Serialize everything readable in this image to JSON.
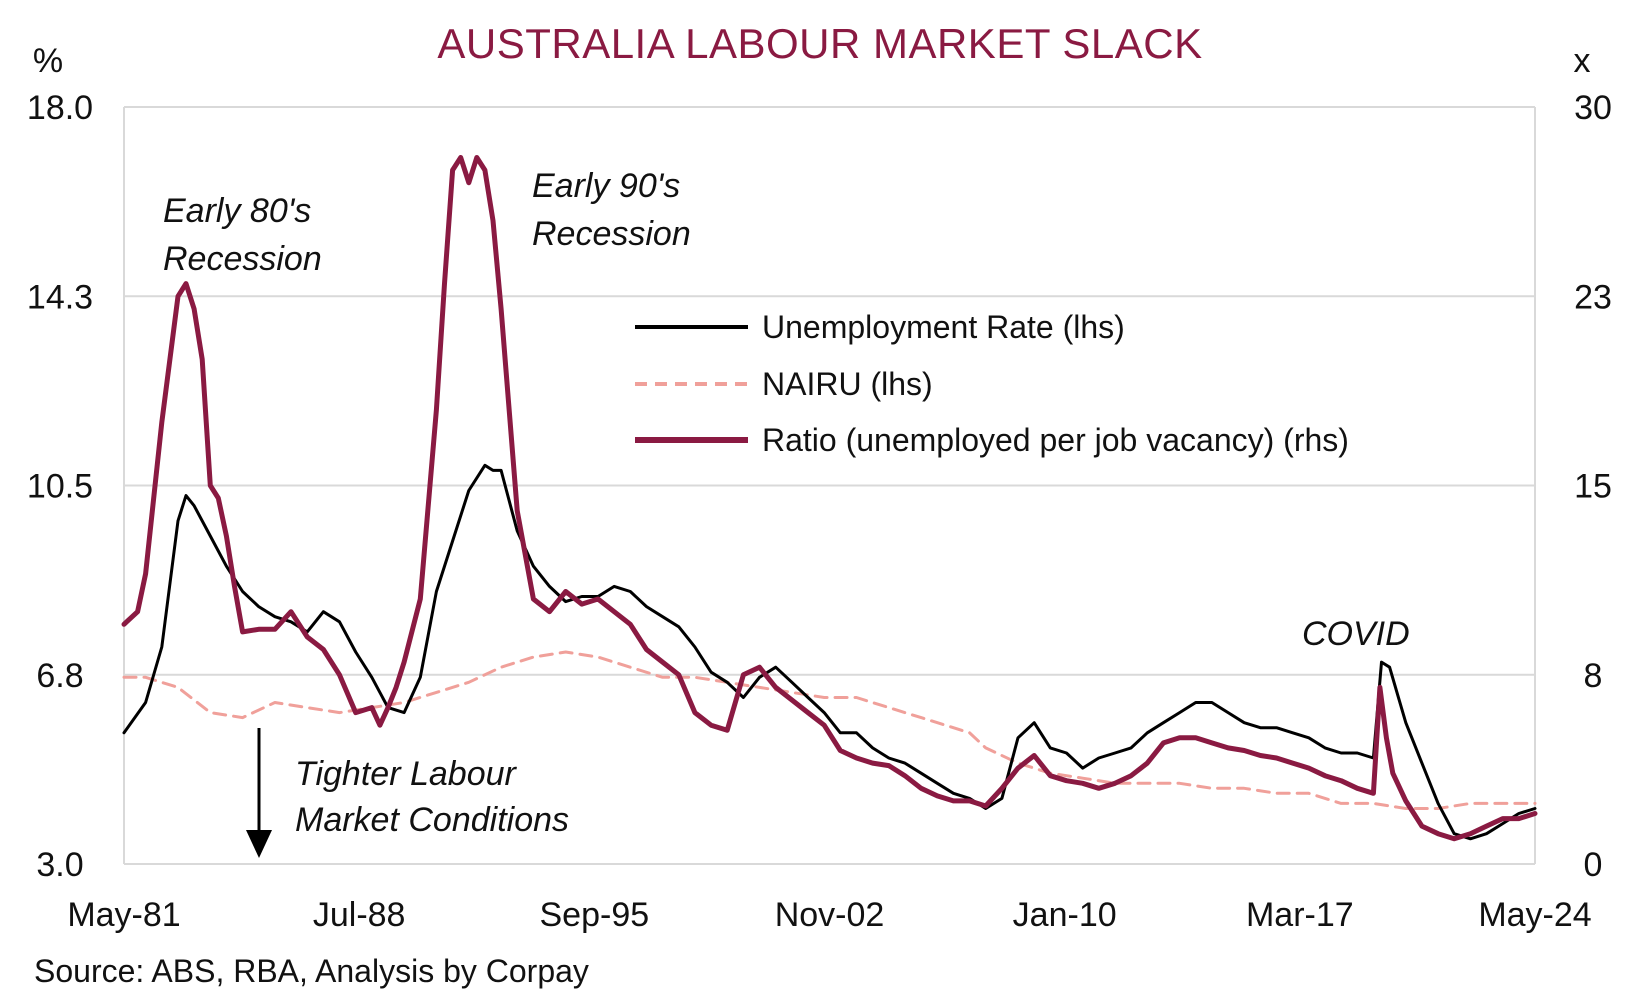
{
  "chart_data": {
    "type": "line",
    "title": "AUSTRALIA LABOUR MARKET SLACK",
    "y_left_unit": "%",
    "y_right_unit": "x",
    "y_left_ticks": [
      "18.0",
      "14.3",
      "10.5",
      "6.8",
      "3.0"
    ],
    "y_right_ticks": [
      "30",
      "23",
      "15",
      "8",
      "0"
    ],
    "ylim_left": [
      3.0,
      18.0
    ],
    "ylim_right": [
      0,
      30
    ],
    "x_ticks": [
      "May-81",
      "Jul-88",
      "Sep-95",
      "Nov-02",
      "Jan-10",
      "Mar-17",
      "May-24"
    ],
    "xlim": [
      1981.33,
      2025.0
    ],
    "grid": "horizontal",
    "legend_position": "center-right",
    "series": [
      {
        "name": "Unemployment Rate (lhs)",
        "axis": "left",
        "color": "#000000",
        "style": "solid",
        "x": [
          1981.33,
          1982.0,
          1982.5,
          1983.0,
          1983.25,
          1983.5,
          1984.0,
          1984.5,
          1985.0,
          1985.5,
          1986.0,
          1986.5,
          1987.0,
          1987.5,
          1988.0,
          1988.5,
          1989.0,
          1989.5,
          1990.0,
          1990.5,
          1991.0,
          1991.5,
          1992.0,
          1992.5,
          1992.75,
          1993.0,
          1993.5,
          1994.0,
          1994.5,
          1995.0,
          1995.5,
          1996.0,
          1996.5,
          1997.0,
          1997.5,
          1998.0,
          1998.5,
          1999.0,
          1999.5,
          2000.0,
          2000.5,
          2001.0,
          2001.5,
          2002.0,
          2002.5,
          2003.0,
          2003.5,
          2004.0,
          2004.5,
          2005.0,
          2005.5,
          2006.0,
          2006.5,
          2007.0,
          2007.5,
          2008.0,
          2008.5,
          2009.0,
          2009.5,
          2010.0,
          2010.5,
          2011.0,
          2011.5,
          2012.0,
          2012.5,
          2013.0,
          2013.5,
          2014.0,
          2014.5,
          2015.0,
          2015.5,
          2016.0,
          2016.5,
          2017.0,
          2017.5,
          2018.0,
          2018.5,
          2019.0,
          2019.5,
          2020.0,
          2020.25,
          2020.5,
          2021.0,
          2021.5,
          2022.0,
          2022.5,
          2023.0,
          2023.5,
          2024.0,
          2024.5,
          2025.0
        ],
        "y": [
          5.6,
          6.2,
          7.3,
          9.8,
          10.3,
          10.1,
          9.5,
          8.9,
          8.4,
          8.1,
          7.9,
          7.8,
          7.6,
          8.0,
          7.8,
          7.2,
          6.7,
          6.1,
          6.0,
          6.7,
          8.4,
          9.4,
          10.4,
          10.9,
          10.8,
          10.8,
          9.6,
          8.9,
          8.5,
          8.2,
          8.3,
          8.3,
          8.5,
          8.4,
          8.1,
          7.9,
          7.7,
          7.3,
          6.8,
          6.6,
          6.3,
          6.7,
          6.9,
          6.6,
          6.3,
          6.0,
          5.6,
          5.6,
          5.3,
          5.1,
          5.0,
          4.8,
          4.6,
          4.4,
          4.3,
          4.1,
          4.3,
          5.5,
          5.8,
          5.3,
          5.2,
          4.9,
          5.1,
          5.2,
          5.3,
          5.6,
          5.8,
          6.0,
          6.2,
          6.2,
          6.0,
          5.8,
          5.7,
          5.7,
          5.6,
          5.5,
          5.3,
          5.2,
          5.2,
          5.1,
          7.0,
          6.9,
          5.8,
          5.0,
          4.2,
          3.6,
          3.5,
          3.6,
          3.8,
          4.0,
          4.1
        ]
      },
      {
        "name": "NAIRU (lhs)",
        "axis": "left",
        "color": "#f0a09a",
        "style": "dashed",
        "x": [
          1981.33,
          1982.0,
          1983.0,
          1984.0,
          1985.0,
          1986.0,
          1987.0,
          1988.0,
          1989.0,
          1990.0,
          1991.0,
          1992.0,
          1993.0,
          1994.0,
          1995.0,
          1996.0,
          1997.0,
          1998.0,
          1999.0,
          2000.0,
          2001.0,
          2002.0,
          2003.0,
          2004.0,
          2005.0,
          2006.0,
          2007.0,
          2007.5,
          2008.0,
          2009.0,
          2010.0,
          2011.0,
          2012.0,
          2013.0,
          2014.0,
          2015.0,
          2016.0,
          2017.0,
          2018.0,
          2019.0,
          2020.0,
          2021.0,
          2022.0,
          2023.0,
          2024.0,
          2025.0
        ],
        "y": [
          6.7,
          6.7,
          6.5,
          6.0,
          5.9,
          6.2,
          6.1,
          6.0,
          6.1,
          6.2,
          6.4,
          6.6,
          6.9,
          7.1,
          7.2,
          7.1,
          6.9,
          6.7,
          6.7,
          6.6,
          6.5,
          6.4,
          6.3,
          6.3,
          6.1,
          5.9,
          5.7,
          5.6,
          5.3,
          5.0,
          4.8,
          4.7,
          4.6,
          4.6,
          4.6,
          4.5,
          4.5,
          4.4,
          4.4,
          4.2,
          4.2,
          4.1,
          4.1,
          4.2,
          4.2,
          4.2
        ]
      },
      {
        "name": "Ratio (unemployed per job vacancy) (rhs)",
        "axis": "right",
        "color": "#8a1a42",
        "style": "solid",
        "x": [
          1981.33,
          1981.75,
          1982.0,
          1982.5,
          1983.0,
          1983.25,
          1983.5,
          1983.75,
          1984.0,
          1984.25,
          1984.5,
          1984.75,
          1985.0,
          1985.5,
          1986.0,
          1986.5,
          1987.0,
          1987.5,
          1988.0,
          1988.5,
          1989.0,
          1989.25,
          1989.5,
          1989.75,
          1990.0,
          1990.5,
          1991.0,
          1991.25,
          1991.5,
          1991.75,
          1992.0,
          1992.25,
          1992.5,
          1992.75,
          1993.0,
          1993.5,
          1994.0,
          1994.5,
          1995.0,
          1995.5,
          1996.0,
          1996.5,
          1997.0,
          1997.5,
          1998.0,
          1998.5,
          1999.0,
          1999.5,
          2000.0,
          2000.5,
          2001.0,
          2001.5,
          2002.0,
          2002.5,
          2003.0,
          2003.5,
          2004.0,
          2004.5,
          2005.0,
          2005.5,
          2006.0,
          2006.5,
          2007.0,
          2007.5,
          2008.0,
          2008.5,
          2009.0,
          2009.5,
          2010.0,
          2010.5,
          2011.0,
          2011.5,
          2012.0,
          2012.5,
          2013.0,
          2013.5,
          2014.0,
          2014.5,
          2015.0,
          2015.5,
          2016.0,
          2016.5,
          2017.0,
          2017.5,
          2018.0,
          2018.5,
          2019.0,
          2019.5,
          2020.0,
          2020.2,
          2020.4,
          2020.6,
          2021.0,
          2021.5,
          2022.0,
          2022.5,
          2023.0,
          2023.5,
          2024.0,
          2024.5,
          2025.0
        ],
        "y": [
          9.5,
          10.0,
          11.5,
          17.5,
          22.5,
          23.0,
          22.0,
          20.0,
          15.0,
          14.5,
          13.0,
          11.0,
          9.2,
          9.3,
          9.3,
          10.0,
          9.0,
          8.5,
          7.5,
          6.0,
          6.2,
          5.5,
          6.2,
          7.0,
          8.0,
          10.5,
          18.0,
          23.0,
          27.5,
          28.0,
          27.0,
          28.0,
          27.5,
          25.5,
          22.0,
          14.0,
          10.5,
          10.0,
          10.8,
          10.3,
          10.5,
          10.0,
          9.5,
          8.5,
          8.0,
          7.5,
          6.0,
          5.5,
          5.3,
          7.5,
          7.8,
          7.0,
          6.5,
          6.0,
          5.5,
          4.5,
          4.2,
          4.0,
          3.9,
          3.5,
          3.0,
          2.7,
          2.5,
          2.5,
          2.3,
          3.0,
          3.8,
          4.3,
          3.5,
          3.3,
          3.2,
          3.0,
          3.2,
          3.5,
          4.0,
          4.8,
          5.0,
          5.0,
          4.8,
          4.6,
          4.5,
          4.3,
          4.2,
          4.0,
          3.8,
          3.5,
          3.3,
          3.0,
          2.8,
          7.0,
          5.0,
          3.6,
          2.5,
          1.5,
          1.2,
          1.0,
          1.2,
          1.5,
          1.8,
          1.8,
          2.0
        ]
      }
    ],
    "annotations": [
      {
        "text": "Early 80's",
        "text2": "Recession"
      },
      {
        "text": "Early 90's",
        "text2": "Recession"
      },
      {
        "text": "COVID"
      },
      {
        "text": "Tighter Labour",
        "text2": "Market Conditions"
      }
    ]
  },
  "source": "Source: ABS, RBA, Analysis by Corpay"
}
